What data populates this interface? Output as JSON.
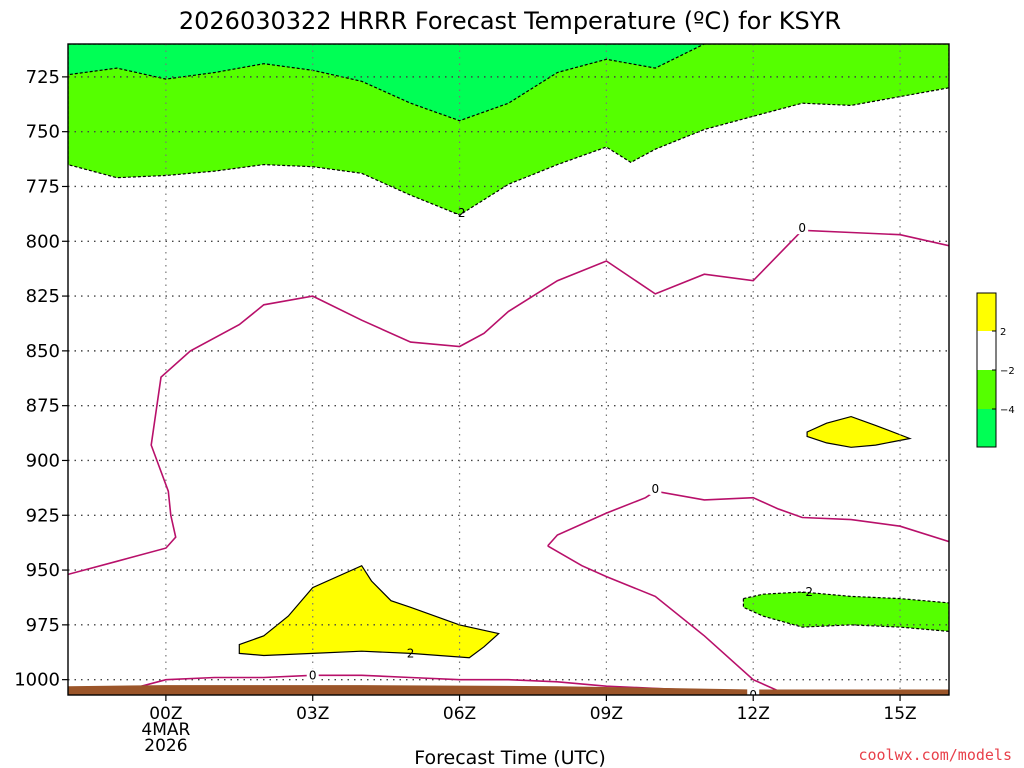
{
  "chart_data": {
    "type": "area",
    "title": "2026030322 HRRR Forecast Temperature (ºC) for KSYR",
    "xlabel": "Forecast Time (UTC)",
    "ylabel": "",
    "x_ticks": [
      {
        "hour": 0,
        "lines": [
          "00Z",
          "4MAR",
          "2026"
        ]
      },
      {
        "hour": 3,
        "lines": [
          "03Z"
        ]
      },
      {
        "hour": 6,
        "lines": [
          "06Z"
        ]
      },
      {
        "hour": 9,
        "lines": [
          "09Z"
        ]
      },
      {
        "hour": 12,
        "lines": [
          "12Z"
        ]
      },
      {
        "hour": 15,
        "lines": [
          "15Z"
        ]
      }
    ],
    "y_ticks": [
      725,
      750,
      775,
      800,
      825,
      850,
      875,
      900,
      925,
      950,
      975,
      1000
    ],
    "xlim": [
      -2,
      16
    ],
    "ylim": [
      1007,
      710
    ],
    "grid": true,
    "colors": {
      "lt_neg4": "#00ff55",
      "neg4_to_neg2": "#55ff00",
      "pos2_plus": "#ffff00",
      "zero_line": "#b8106a",
      "ground": "#9b5529"
    },
    "colorbar": {
      "labels": [
        "2",
        "−2",
        "−4"
      ]
    },
    "fills": [
      {
        "name": "below_neg2_upper",
        "color": "neg4_to_neg2",
        "points": [
          [
            -2,
            710
          ],
          [
            16,
            710
          ],
          [
            16,
            730
          ],
          [
            15,
            734
          ],
          [
            14,
            738
          ],
          [
            13,
            737
          ],
          [
            12,
            743
          ],
          [
            11,
            749
          ],
          [
            10,
            758
          ],
          [
            9.5,
            764
          ],
          [
            9,
            757
          ],
          [
            8,
            765
          ],
          [
            7,
            774
          ],
          [
            6,
            788
          ],
          [
            5,
            779
          ],
          [
            4,
            769
          ],
          [
            3,
            766
          ],
          [
            2,
            765
          ],
          [
            1,
            768
          ],
          [
            0,
            770
          ],
          [
            -1,
            771
          ],
          [
            -2,
            765
          ]
        ]
      },
      {
        "name": "below_neg4_upper",
        "color": "lt_neg4",
        "points": [
          [
            -2,
            710
          ],
          [
            11,
            710
          ],
          [
            10,
            721
          ],
          [
            9,
            717
          ],
          [
            8,
            723
          ],
          [
            7,
            737
          ],
          [
            6,
            745
          ],
          [
            5,
            737
          ],
          [
            4,
            727
          ],
          [
            3,
            722
          ],
          [
            2,
            719
          ],
          [
            1,
            723
          ],
          [
            0,
            726
          ],
          [
            -1,
            721
          ],
          [
            -2,
            724
          ]
        ]
      },
      {
        "name": "warm_pocket_low_left",
        "color": "pos2_plus",
        "points": [
          [
            1.5,
            984
          ],
          [
            2,
            980
          ],
          [
            2.5,
            971
          ],
          [
            3,
            958
          ],
          [
            4,
            948
          ],
          [
            4.2,
            955
          ],
          [
            4.6,
            964
          ],
          [
            5,
            967
          ],
          [
            6,
            975
          ],
          [
            6.8,
            979
          ],
          [
            6.5,
            985
          ],
          [
            6.2,
            990
          ],
          [
            5,
            988
          ],
          [
            4,
            987
          ],
          [
            3,
            988
          ],
          [
            2,
            989
          ],
          [
            1.5,
            988
          ]
        ]
      },
      {
        "name": "warm_pocket_right",
        "color": "pos2_plus",
        "points": [
          [
            13.1,
            887
          ],
          [
            13.5,
            883
          ],
          [
            14,
            880
          ],
          [
            14.5,
            884
          ],
          [
            15.2,
            890
          ],
          [
            14.5,
            893
          ],
          [
            14,
            894
          ],
          [
            13.5,
            892
          ],
          [
            13.1,
            889
          ]
        ]
      },
      {
        "name": "below_neg2_lower_right",
        "color": "neg4_to_neg2",
        "points": [
          [
            11.8,
            963
          ],
          [
            12.2,
            961
          ],
          [
            13,
            960
          ],
          [
            14,
            962
          ],
          [
            15,
            963
          ],
          [
            16,
            965
          ],
          [
            16,
            978
          ],
          [
            15,
            976
          ],
          [
            14,
            975
          ],
          [
            13,
            976
          ],
          [
            12.2,
            971
          ],
          [
            11.8,
            967
          ]
        ]
      }
    ],
    "zero_isotherms": [
      [
        [
          -2,
          952
        ],
        [
          -1,
          946
        ],
        [
          0,
          940
        ],
        [
          0.2,
          935
        ],
        [
          0.1,
          925
        ],
        [
          0.05,
          914
        ],
        [
          -0.3,
          893
        ],
        [
          -0.1,
          862
        ],
        [
          0.5,
          850
        ],
        [
          1.5,
          838
        ],
        [
          2,
          829
        ],
        [
          3,
          825
        ],
        [
          4,
          836
        ],
        [
          5,
          846
        ],
        [
          6,
          848
        ],
        [
          6.5,
          842
        ],
        [
          7,
          832
        ],
        [
          8,
          818
        ],
        [
          9,
          809
        ],
        [
          10,
          824
        ],
        [
          11,
          815
        ],
        [
          12,
          818
        ],
        [
          13,
          795
        ],
        [
          14,
          796
        ],
        [
          15,
          797
        ],
        [
          16,
          802
        ]
      ],
      [
        [
          7.8,
          939
        ],
        [
          8,
          934
        ],
        [
          9,
          924
        ],
        [
          9.8,
          917
        ],
        [
          10,
          914
        ],
        [
          11,
          918
        ],
        [
          12,
          917
        ],
        [
          12.5,
          922
        ],
        [
          13,
          926
        ],
        [
          14,
          927
        ],
        [
          15,
          930
        ],
        [
          16,
          937
        ]
      ],
      [
        [
          7.8,
          939
        ],
        [
          8.5,
          948
        ],
        [
          9,
          953
        ],
        [
          10,
          962
        ],
        [
          11,
          980
        ],
        [
          12,
          1000
        ],
        [
          12.5,
          1005
        ],
        [
          13,
          1008
        ]
      ],
      [
        [
          -0.5,
          1003
        ],
        [
          0,
          1000
        ],
        [
          1,
          999
        ],
        [
          2,
          999
        ],
        [
          3,
          998
        ],
        [
          4,
          998
        ],
        [
          5,
          999
        ],
        [
          6,
          1000
        ],
        [
          7,
          1000
        ],
        [
          8,
          1001
        ],
        [
          9,
          1003
        ],
        [
          10,
          1004
        ],
        [
          11,
          1005
        ],
        [
          12,
          1007
        ],
        [
          12.5,
          1007
        ]
      ]
    ],
    "neg2_isotherm_labels": [
      {
        "text": "-2",
        "hour": 6,
        "level": 787
      },
      {
        "text": "2",
        "hour": 5,
        "level": 988
      },
      {
        "text": "-2",
        "hour": 13.1,
        "level": 960
      }
    ],
    "zero_isotherm_labels": [
      {
        "text": "0",
        "hour": 13,
        "level": 794
      },
      {
        "text": "0",
        "hour": 10,
        "level": 913
      },
      {
        "text": "0",
        "hour": 3,
        "level": 998
      },
      {
        "text": "0",
        "hour": 12,
        "level": 1007
      }
    ]
  },
  "credit": "coolwx.com/models"
}
